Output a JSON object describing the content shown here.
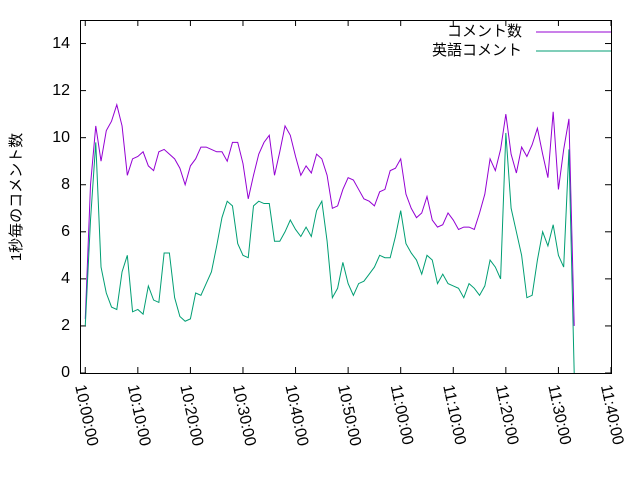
{
  "chart_data": {
    "type": "line",
    "y_label": "1秒毎のコメント数",
    "x": [
      "10:00:00",
      "10:01:00",
      "10:02:00",
      "10:03:00",
      "10:04:00",
      "10:05:00",
      "10:06:00",
      "10:07:00",
      "10:08:00",
      "10:09:00",
      "10:10:00",
      "10:11:00",
      "10:12:00",
      "10:13:00",
      "10:14:00",
      "10:15:00",
      "10:16:00",
      "10:17:00",
      "10:18:00",
      "10:19:00",
      "10:20:00",
      "10:21:00",
      "10:22:00",
      "10:23:00",
      "10:24:00",
      "10:25:00",
      "10:26:00",
      "10:27:00",
      "10:28:00",
      "10:29:00",
      "10:30:00",
      "10:31:00",
      "10:32:00",
      "10:33:00",
      "10:34:00",
      "10:35:00",
      "10:36:00",
      "10:37:00",
      "10:38:00",
      "10:39:00",
      "10:40:00",
      "10:41:00",
      "10:42:00",
      "10:43:00",
      "10:44:00",
      "10:45:00",
      "10:46:00",
      "10:47:00",
      "10:48:00",
      "10:49:00",
      "10:50:00",
      "10:51:00",
      "10:52:00",
      "10:53:00",
      "10:54:00",
      "10:55:00",
      "10:56:00",
      "10:57:00",
      "10:58:00",
      "10:59:00",
      "11:00:00",
      "11:01:00",
      "11:02:00",
      "11:03:00",
      "11:04:00",
      "11:05:00",
      "11:06:00",
      "11:07:00",
      "11:08:00",
      "11:09:00",
      "11:10:00",
      "11:11:00",
      "11:12:00",
      "11:13:00",
      "11:14:00",
      "11:15:00",
      "11:16:00",
      "11:17:00",
      "11:18:00",
      "11:19:00",
      "11:20:00",
      "11:21:00",
      "11:22:00",
      "11:23:00",
      "11:24:00",
      "11:25:00",
      "11:26:00",
      "11:27:00",
      "11:28:00",
      "11:29:00",
      "11:30:00",
      "11:31:00",
      "11:32:00",
      "11:33:00"
    ],
    "series": [
      {
        "name": "コメント数",
        "color": "#9400d3",
        "values": [
          2.3,
          8,
          10.5,
          9,
          10.3,
          10.7,
          11.4,
          10.5,
          8.4,
          9.1,
          9.2,
          9.4,
          8.8,
          8.6,
          9.4,
          9.5,
          9.3,
          9.1,
          8.7,
          8.0,
          8.8,
          9.1,
          9.6,
          9.6,
          9.5,
          9.4,
          9.4,
          9.0,
          9.8,
          9.8,
          8.9,
          7.4,
          8.4,
          9.3,
          9.8,
          10.1,
          8.4,
          9.4,
          10.5,
          10.1,
          9.2,
          8.4,
          8.8,
          8.5,
          9.3,
          9.1,
          8.4,
          7.0,
          7.1,
          7.8,
          8.3,
          8.2,
          7.8,
          7.4,
          7.3,
          7.1,
          7.7,
          7.8,
          8.6,
          8.7,
          9.1,
          7.6,
          7.0,
          6.6,
          6.8,
          7.5,
          6.5,
          6.2,
          6.3,
          6.8,
          6.5,
          6.1,
          6.2,
          6.2,
          6.1,
          6.8,
          7.6,
          9.1,
          8.6,
          9.5,
          11.0,
          9.3,
          8.5,
          9.6,
          9.2,
          9.7,
          10.4,
          9.3,
          8.3,
          11.1,
          7.8,
          9.5,
          10.8,
          2.0
        ]
      },
      {
        "name": "英語コメント",
        "color": "#009e73",
        "values": [
          2.0,
          6.5,
          9.8,
          4.5,
          3.4,
          2.8,
          2.7,
          4.3,
          5.0,
          2.6,
          2.7,
          2.5,
          3.7,
          3.1,
          3.0,
          5.1,
          5.1,
          3.2,
          2.4,
          2.2,
          2.3,
          3.4,
          3.3,
          3.8,
          4.3,
          5.4,
          6.6,
          7.3,
          7.1,
          5.5,
          5.0,
          4.9,
          7.1,
          7.3,
          7.2,
          7.2,
          5.6,
          5.6,
          6.0,
          6.5,
          6.1,
          5.8,
          6.2,
          5.8,
          6.9,
          7.3,
          5.6,
          3.2,
          3.6,
          4.7,
          3.8,
          3.3,
          3.8,
          3.9,
          4.2,
          4.5,
          5.0,
          4.9,
          4.9,
          5.8,
          6.9,
          5.5,
          5.1,
          4.8,
          4.2,
          5.0,
          4.8,
          3.8,
          4.2,
          3.8,
          3.7,
          3.6,
          3.2,
          3.8,
          3.6,
          3.3,
          3.7,
          4.8,
          4.5,
          4.0,
          10.2,
          7.0,
          6.0,
          5.0,
          3.2,
          3.3,
          4.8,
          6.0,
          5.4,
          6.3,
          5.0,
          4.5,
          9.5,
          0
        ]
      }
    ],
    "xlim": [
      "09:59:00",
      "11:40:00"
    ],
    "xticks": [
      "10:00:00",
      "10:10:00",
      "10:20:00",
      "10:30:00",
      "10:40:00",
      "10:50:00",
      "11:00:00",
      "11:10:00",
      "11:20:00",
      "11:30:00",
      "11:40:00"
    ],
    "ylim": [
      0,
      15
    ],
    "yticks": [
      0,
      2,
      4,
      6,
      8,
      10,
      12,
      14
    ],
    "legend": "top right"
  }
}
